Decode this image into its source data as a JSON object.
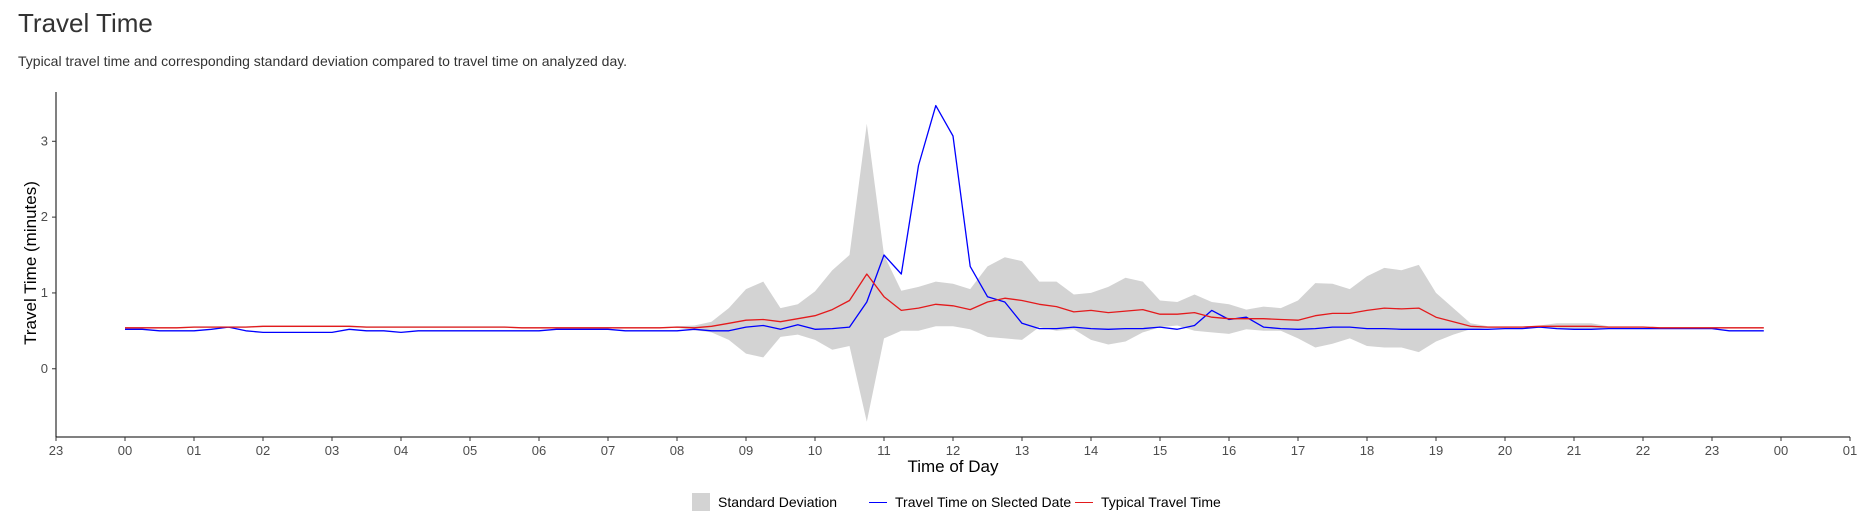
{
  "page": {
    "title": "Travel Time",
    "subtitle": "Typical travel time and corresponding standard deviation compared to travel time on analyzed day."
  },
  "colors": {
    "band": "#d3d3d3",
    "selected": "#0000ff",
    "typical": "#e31a1c",
    "axis": "#000000"
  },
  "chart_data": {
    "type": "line",
    "xlabel": "Time of Day",
    "ylabel": "Travel Time (minutes)",
    "xlim": [
      -1,
      25
    ],
    "ylim": [
      -0.9,
      3.65
    ],
    "grid": false,
    "legend_position": "bottom",
    "x_ticks": [
      -1,
      0,
      1,
      2,
      3,
      4,
      5,
      6,
      7,
      8,
      9,
      10,
      11,
      12,
      13,
      14,
      15,
      16,
      17,
      18,
      19,
      20,
      21,
      22,
      23,
      24,
      25
    ],
    "x_tick_labels": [
      "23",
      "00",
      "01",
      "02",
      "03",
      "04",
      "05",
      "06",
      "07",
      "08",
      "09",
      "10",
      "11",
      "12",
      "13",
      "14",
      "15",
      "16",
      "17",
      "18",
      "19",
      "20",
      "21",
      "22",
      "23",
      "00",
      "01"
    ],
    "y_ticks": [
      0,
      1,
      2,
      3
    ],
    "y_tick_labels": [
      "0",
      "1",
      "2",
      "3"
    ],
    "legend": [
      "Standard Deviation",
      "Travel Time on Slected Date",
      "Typical Travel Time"
    ],
    "x": [
      0,
      0.25,
      0.5,
      0.75,
      1,
      1.25,
      1.5,
      1.75,
      2,
      2.25,
      2.5,
      2.75,
      3,
      3.25,
      3.5,
      3.75,
      4,
      4.25,
      4.5,
      4.75,
      5,
      5.25,
      5.5,
      5.75,
      6,
      6.25,
      6.5,
      6.75,
      7,
      7.25,
      7.5,
      7.75,
      8,
      8.25,
      8.5,
      8.75,
      9,
      9.25,
      9.5,
      9.75,
      10,
      10.25,
      10.5,
      10.75,
      11,
      11.25,
      11.5,
      11.75,
      12,
      12.25,
      12.5,
      12.75,
      13,
      13.25,
      13.5,
      13.75,
      14,
      14.25,
      14.5,
      14.75,
      15,
      15.25,
      15.5,
      15.75,
      16,
      16.25,
      16.5,
      16.75,
      17,
      17.25,
      17.5,
      17.75,
      18,
      18.25,
      18.5,
      18.75,
      19,
      19.25,
      19.5,
      19.75,
      20,
      20.25,
      20.5,
      20.75,
      21,
      21.25,
      21.5,
      21.75,
      22,
      22.25,
      22.5,
      22.75,
      23,
      23.25,
      23.5,
      23.75
    ],
    "series": [
      {
        "name": "Travel Time on Slected Date",
        "values": [
          0.52,
          0.52,
          0.5,
          0.5,
          0.5,
          0.52,
          0.55,
          0.5,
          0.48,
          0.48,
          0.48,
          0.48,
          0.48,
          0.52,
          0.5,
          0.5,
          0.48,
          0.5,
          0.5,
          0.5,
          0.5,
          0.5,
          0.5,
          0.5,
          0.5,
          0.52,
          0.52,
          0.52,
          0.52,
          0.5,
          0.5,
          0.5,
          0.5,
          0.52,
          0.5,
          0.5,
          0.55,
          0.57,
          0.52,
          0.58,
          0.52,
          0.53,
          0.55,
          0.88,
          1.5,
          1.25,
          2.68,
          3.47,
          3.07,
          1.35,
          0.95,
          0.88,
          0.6,
          0.53,
          0.53,
          0.55,
          0.53,
          0.52,
          0.53,
          0.53,
          0.55,
          0.52,
          0.57,
          0.77,
          0.65,
          0.68,
          0.55,
          0.53,
          0.52,
          0.53,
          0.55,
          0.55,
          0.53,
          0.53,
          0.52,
          0.52,
          0.52,
          0.52,
          0.52,
          0.52,
          0.53,
          0.53,
          0.55,
          0.53,
          0.52,
          0.52,
          0.53,
          0.53,
          0.53,
          0.53,
          0.53,
          0.53,
          0.53,
          0.5,
          0.5,
          0.5
        ]
      },
      {
        "name": "Typical Travel Time",
        "values": [
          0.54,
          0.54,
          0.54,
          0.54,
          0.55,
          0.55,
          0.55,
          0.55,
          0.56,
          0.56,
          0.56,
          0.56,
          0.56,
          0.56,
          0.55,
          0.55,
          0.55,
          0.55,
          0.55,
          0.55,
          0.55,
          0.55,
          0.55,
          0.54,
          0.54,
          0.54,
          0.54,
          0.54,
          0.54,
          0.54,
          0.54,
          0.54,
          0.55,
          0.54,
          0.56,
          0.6,
          0.64,
          0.65,
          0.62,
          0.66,
          0.7,
          0.78,
          0.9,
          1.25,
          0.95,
          0.77,
          0.8,
          0.85,
          0.83,
          0.78,
          0.88,
          0.93,
          0.9,
          0.85,
          0.82,
          0.75,
          0.77,
          0.74,
          0.76,
          0.78,
          0.72,
          0.72,
          0.74,
          0.68,
          0.66,
          0.66,
          0.66,
          0.65,
          0.64,
          0.7,
          0.73,
          0.73,
          0.77,
          0.8,
          0.79,
          0.8,
          0.68,
          0.62,
          0.56,
          0.55,
          0.55,
          0.55,
          0.56,
          0.56,
          0.56,
          0.56,
          0.55,
          0.55,
          0.55,
          0.54,
          0.54,
          0.54,
          0.54,
          0.54,
          0.54,
          0.54
        ]
      }
    ],
    "band": {
      "name": "Standard Deviation",
      "upper": [
        0.55,
        0.55,
        0.55,
        0.55,
        0.56,
        0.56,
        0.56,
        0.56,
        0.57,
        0.57,
        0.57,
        0.57,
        0.57,
        0.57,
        0.56,
        0.56,
        0.56,
        0.56,
        0.56,
        0.56,
        0.56,
        0.56,
        0.56,
        0.55,
        0.55,
        0.55,
        0.55,
        0.55,
        0.55,
        0.55,
        0.55,
        0.55,
        0.56,
        0.57,
        0.62,
        0.8,
        1.05,
        1.15,
        0.8,
        0.85,
        1.02,
        1.3,
        1.5,
        3.23,
        1.5,
        1.03,
        1.08,
        1.15,
        1.12,
        1.05,
        1.35,
        1.47,
        1.42,
        1.15,
        1.15,
        0.98,
        1.0,
        1.08,
        1.2,
        1.15,
        0.9,
        0.88,
        0.98,
        0.88,
        0.85,
        0.78,
        0.82,
        0.8,
        0.9,
        1.13,
        1.12,
        1.05,
        1.22,
        1.33,
        1.3,
        1.37,
        1.0,
        0.8,
        0.6,
        0.56,
        0.56,
        0.56,
        0.57,
        0.6,
        0.6,
        0.6,
        0.56,
        0.56,
        0.56,
        0.55,
        0.55,
        0.55,
        0.55,
        0.55,
        0.55,
        0.55
      ],
      "lower": [
        0.53,
        0.53,
        0.53,
        0.53,
        0.54,
        0.54,
        0.54,
        0.54,
        0.55,
        0.55,
        0.55,
        0.55,
        0.55,
        0.55,
        0.54,
        0.54,
        0.54,
        0.54,
        0.54,
        0.54,
        0.54,
        0.54,
        0.54,
        0.53,
        0.53,
        0.53,
        0.53,
        0.53,
        0.53,
        0.53,
        0.53,
        0.53,
        0.54,
        0.51,
        0.48,
        0.38,
        0.2,
        0.15,
        0.42,
        0.45,
        0.38,
        0.25,
        0.3,
        -0.7,
        0.4,
        0.5,
        0.5,
        0.56,
        0.56,
        0.52,
        0.42,
        0.4,
        0.38,
        0.55,
        0.5,
        0.52,
        0.38,
        0.32,
        0.36,
        0.48,
        0.55,
        0.57,
        0.5,
        0.48,
        0.46,
        0.52,
        0.5,
        0.5,
        0.4,
        0.28,
        0.33,
        0.4,
        0.3,
        0.28,
        0.28,
        0.22,
        0.36,
        0.45,
        0.52,
        0.54,
        0.54,
        0.54,
        0.55,
        0.52,
        0.52,
        0.52,
        0.54,
        0.54,
        0.54,
        0.53,
        0.53,
        0.53,
        0.53,
        0.53,
        0.53,
        0.53
      ]
    }
  }
}
